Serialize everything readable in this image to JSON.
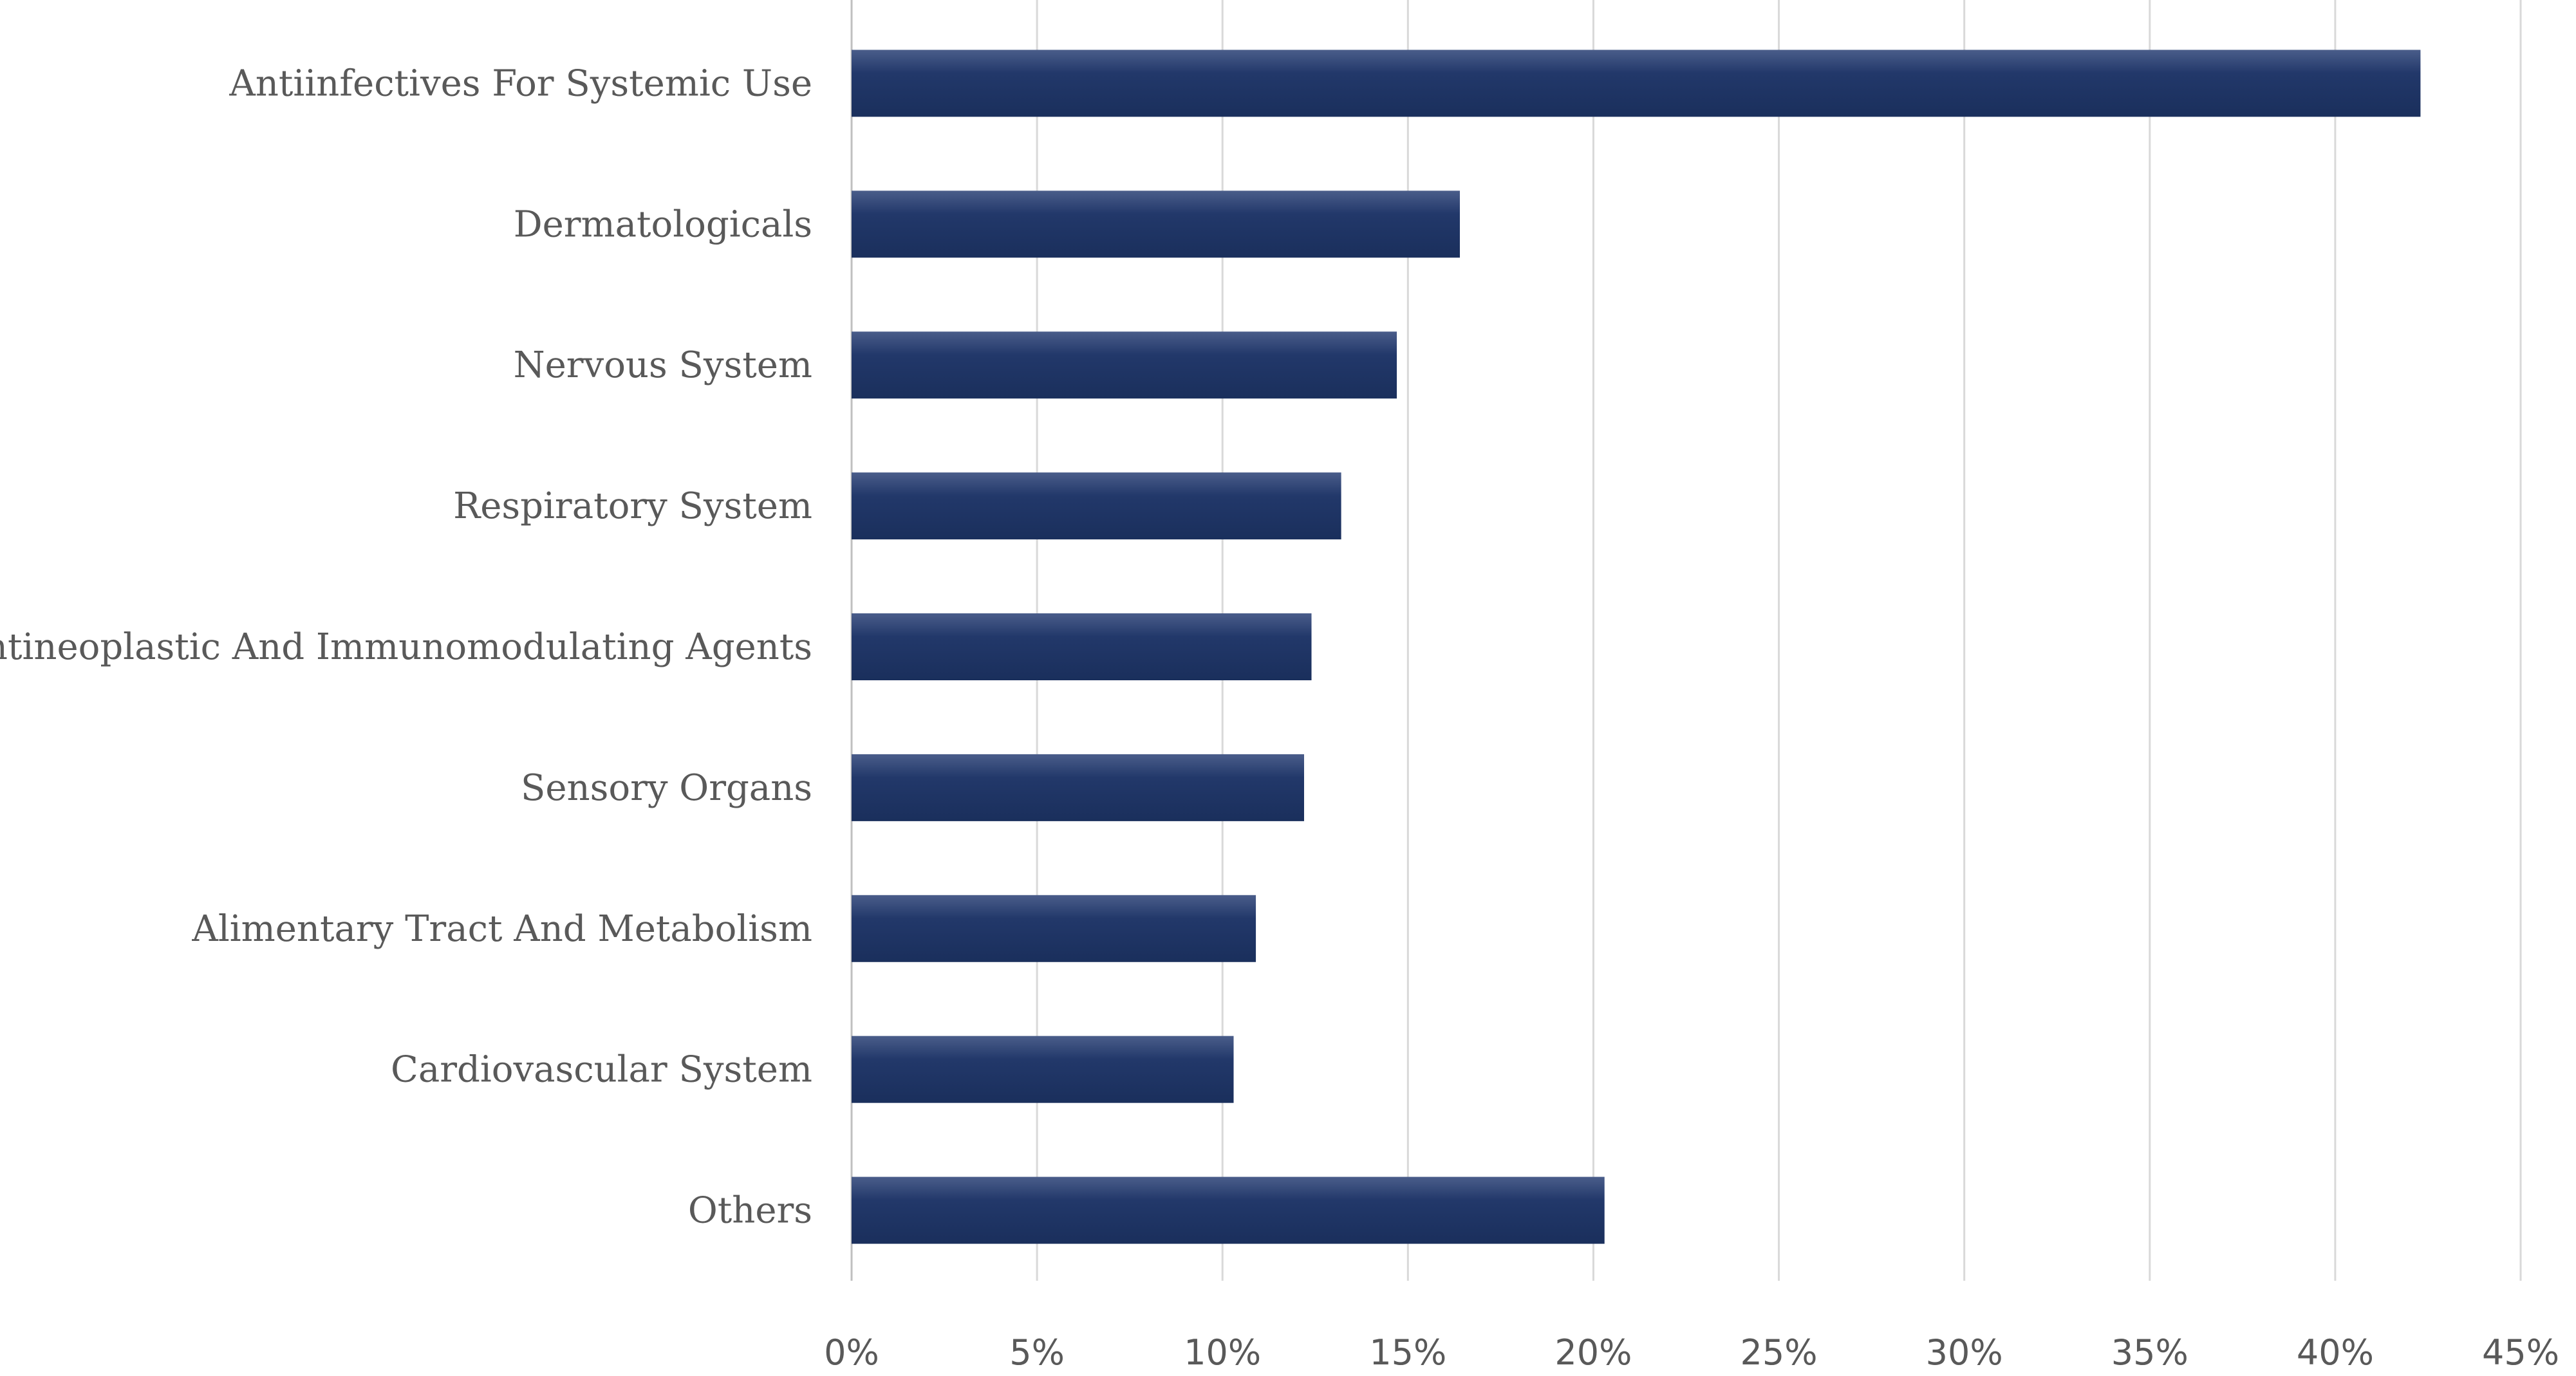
{
  "chart_data": {
    "type": "bar",
    "orientation": "horizontal",
    "title": "",
    "xlabel": "",
    "ylabel": "",
    "xlim": [
      0,
      45
    ],
    "grid": true,
    "bar_color": "#1f3864",
    "categories": [
      "Antiinfectives For Systemic Use",
      "Dermatologicals",
      "Nervous System",
      "Respiratory System",
      "Antineoplastic And Immunomodulating Agents",
      "Sensory Organs",
      "Alimentary Tract And Metabolism",
      "Cardiovascular System",
      "Others"
    ],
    "values": [
      42.3,
      16.4,
      14.7,
      13.2,
      12.4,
      12.2,
      10.9,
      10.3,
      20.3
    ],
    "ticks": [
      0,
      5,
      10,
      15,
      20,
      25,
      30,
      35,
      40,
      45
    ],
    "tick_labels": [
      "0%",
      "5%",
      "10%",
      "15%",
      "20%",
      "25%",
      "30%",
      "35%",
      "40%",
      "45%"
    ]
  }
}
